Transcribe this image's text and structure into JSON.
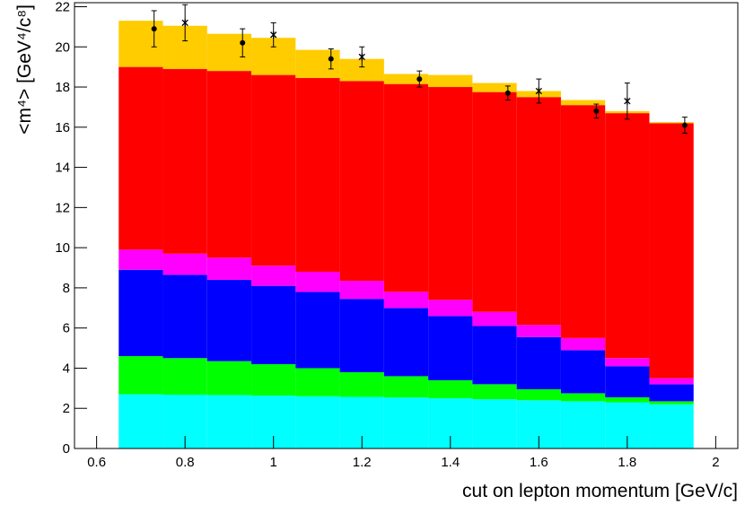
{
  "chart_data": {
    "type": "stacked_histogram",
    "x_label": "cut on lepton momentum [GeV/c]",
    "y_label": "<m⁴> [GeV⁴/c⁸]",
    "bins": [
      0.65,
      0.75,
      0.85,
      0.95,
      1.05,
      1.15,
      1.25,
      1.35,
      1.45,
      1.55,
      1.65,
      1.75,
      1.85,
      1.95
    ],
    "series": [
      {
        "color": "#00ffff",
        "values": [
          2.7,
          2.68,
          2.66,
          2.63,
          2.6,
          2.57,
          2.54,
          2.5,
          2.45,
          2.4,
          2.35,
          2.3,
          2.2
        ]
      },
      {
        "color": "#00ff00",
        "values": [
          1.9,
          1.82,
          1.69,
          1.57,
          1.4,
          1.23,
          1.06,
          0.9,
          0.75,
          0.55,
          0.4,
          0.25,
          0.15
        ]
      },
      {
        "color": "#0000ff",
        "values": [
          4.3,
          4.15,
          4.05,
          3.9,
          3.8,
          3.65,
          3.4,
          3.2,
          2.9,
          2.6,
          2.15,
          1.55,
          0.85
        ]
      },
      {
        "color": "#ff00ff",
        "values": [
          1.0,
          1.05,
          1.1,
          1.0,
          1.0,
          0.9,
          0.8,
          0.8,
          0.7,
          0.6,
          0.6,
          0.4,
          0.3
        ]
      },
      {
        "color": "#ff0000",
        "values": [
          9.1,
          9.2,
          9.3,
          9.5,
          9.65,
          9.95,
          10.35,
          10.6,
          10.95,
          11.35,
          11.6,
          12.2,
          12.7
        ]
      },
      {
        "color": "#ffcc00",
        "values": [
          2.3,
          2.15,
          1.85,
          1.85,
          1.4,
          1.1,
          0.5,
          0.6,
          0.45,
          0.3,
          0.25,
          0.1,
          0.05
        ]
      }
    ],
    "markers": [
      {
        "marker": "circle",
        "color": "#000000",
        "x": [
          0.73,
          0.93,
          1.13,
          1.33,
          1.53,
          1.73,
          1.93
        ],
        "values": [
          20.9,
          20.2,
          19.4,
          18.4,
          17.7,
          16.8,
          16.1
        ],
        "errors": [
          0.9,
          0.7,
          0.5,
          0.4,
          0.35,
          0.35,
          0.4
        ]
      },
      {
        "marker": "star",
        "color": "#000000",
        "x": [
          0.8,
          1.0,
          1.2,
          1.6,
          1.8
        ],
        "values": [
          21.2,
          20.6,
          19.5,
          17.8,
          17.3
        ],
        "errors": [
          0.9,
          0.6,
          0.5,
          0.6,
          0.9
        ]
      }
    ],
    "xlim": [
      0.55,
      2.05
    ],
    "ylim": [
      0,
      22.2
    ],
    "xticks": [
      0.6,
      0.8,
      1,
      1.2,
      1.4,
      1.6,
      1.8,
      2
    ],
    "yticks": [
      0,
      2,
      4,
      6,
      8,
      10,
      12,
      14,
      16,
      18,
      20,
      22
    ]
  }
}
